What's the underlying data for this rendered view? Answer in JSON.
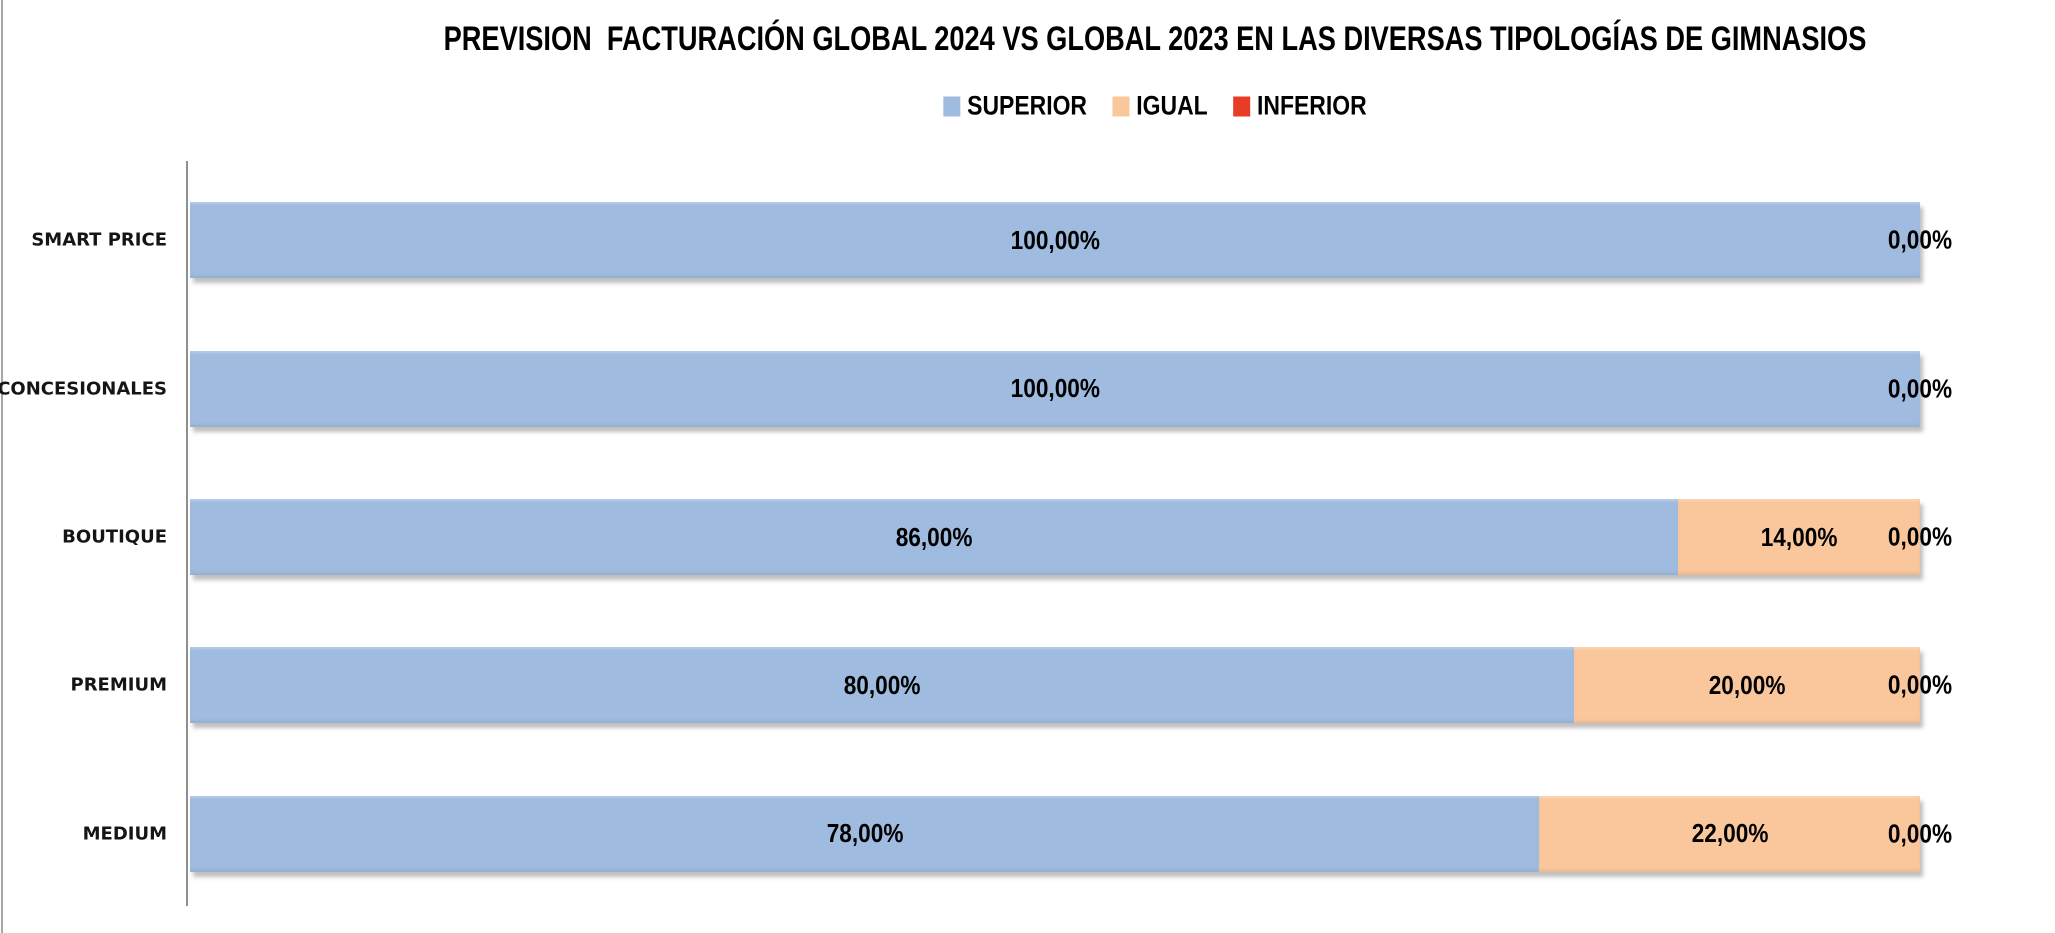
{
  "page": {
    "background": "#ffffff",
    "left_border_color": "#a6a6a6"
  },
  "chart_data": {
    "type": "bar",
    "orientation": "horizontal",
    "stacked": true,
    "unit": "percent",
    "title": "PREVISION  FACTURACIÓN GLOBAL 2024 VS GLOBAL 2023 EN LAS DIVERSAS TIPOLOGÍAS DE GIMNASIOS",
    "legend_position": "top-center",
    "grid": false,
    "xlim": [
      0,
      100
    ],
    "categories": [
      "SMART PRICE",
      "CONCESIONALES",
      "BOUTIQUE",
      "PREMIUM",
      "MEDIUM"
    ],
    "series": [
      {
        "name": "SUPERIOR",
        "color": "#9FBBDF",
        "values": [
          100,
          100,
          86,
          80,
          78
        ]
      },
      {
        "name": "IGUAL",
        "color": "#FAC79D",
        "values": [
          0,
          0,
          14,
          20,
          22
        ]
      },
      {
        "name": "INFERIOR",
        "color": "#E83C26",
        "values": [
          0,
          0,
          0,
          0,
          0
        ]
      }
    ],
    "data_labels": [
      {
        "category": "SMART PRICE",
        "superior": "100,00%",
        "igual": "",
        "inferior": "0,00%"
      },
      {
        "category": "CONCESIONALES",
        "superior": "100,00%",
        "igual": "",
        "inferior": "0,00%"
      },
      {
        "category": "BOUTIQUE",
        "superior": "86,00%",
        "igual": "14,00%",
        "inferior": "0,00%"
      },
      {
        "category": "PREMIUM",
        "superior": "80,00%",
        "igual": "20,00%",
        "inferior": "0,00%"
      },
      {
        "category": "MEDIUM",
        "superior": "78,00%",
        "igual": "22,00%",
        "inferior": "0,00%"
      }
    ],
    "colors": {
      "superior": "#9FBBDF",
      "igual": "#FAC79D",
      "inferior": "#E83C26",
      "axis_line": "#8f8f8f",
      "label_text": "#000000"
    }
  }
}
